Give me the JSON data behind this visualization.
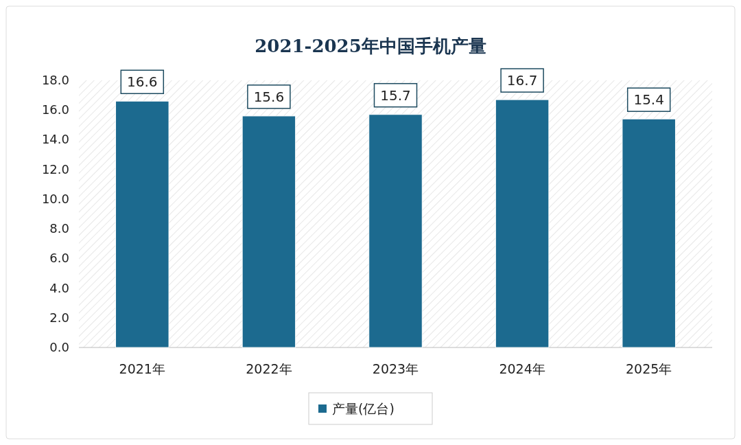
{
  "chart_data": {
    "type": "bar",
    "title": "2021-2025年中国手机产量",
    "categories": [
      "2021年",
      "2022年",
      "2023年",
      "2024年",
      "2025年"
    ],
    "series": [
      {
        "name": "产量(亿台)",
        "color": "#1c6a8f",
        "values": [
          16.6,
          15.6,
          15.7,
          16.7,
          15.4
        ]
      }
    ],
    "ylim": [
      0,
      18
    ],
    "yticks": [
      {
        "value": 0,
        "label": "0.0"
      },
      {
        "value": 2,
        "label": "2.0"
      },
      {
        "value": 4,
        "label": "4.0"
      },
      {
        "value": 6,
        "label": "6.0"
      },
      {
        "value": 8,
        "label": "8.0"
      },
      {
        "value": 10,
        "label": "10.0"
      },
      {
        "value": 12,
        "label": "12.0"
      },
      {
        "value": 14,
        "label": "14.0"
      },
      {
        "value": 16,
        "label": "16.0"
      },
      {
        "value": 18,
        "label": "18.0"
      }
    ],
    "data_labels": true,
    "legend": "bottom",
    "grid": false
  }
}
